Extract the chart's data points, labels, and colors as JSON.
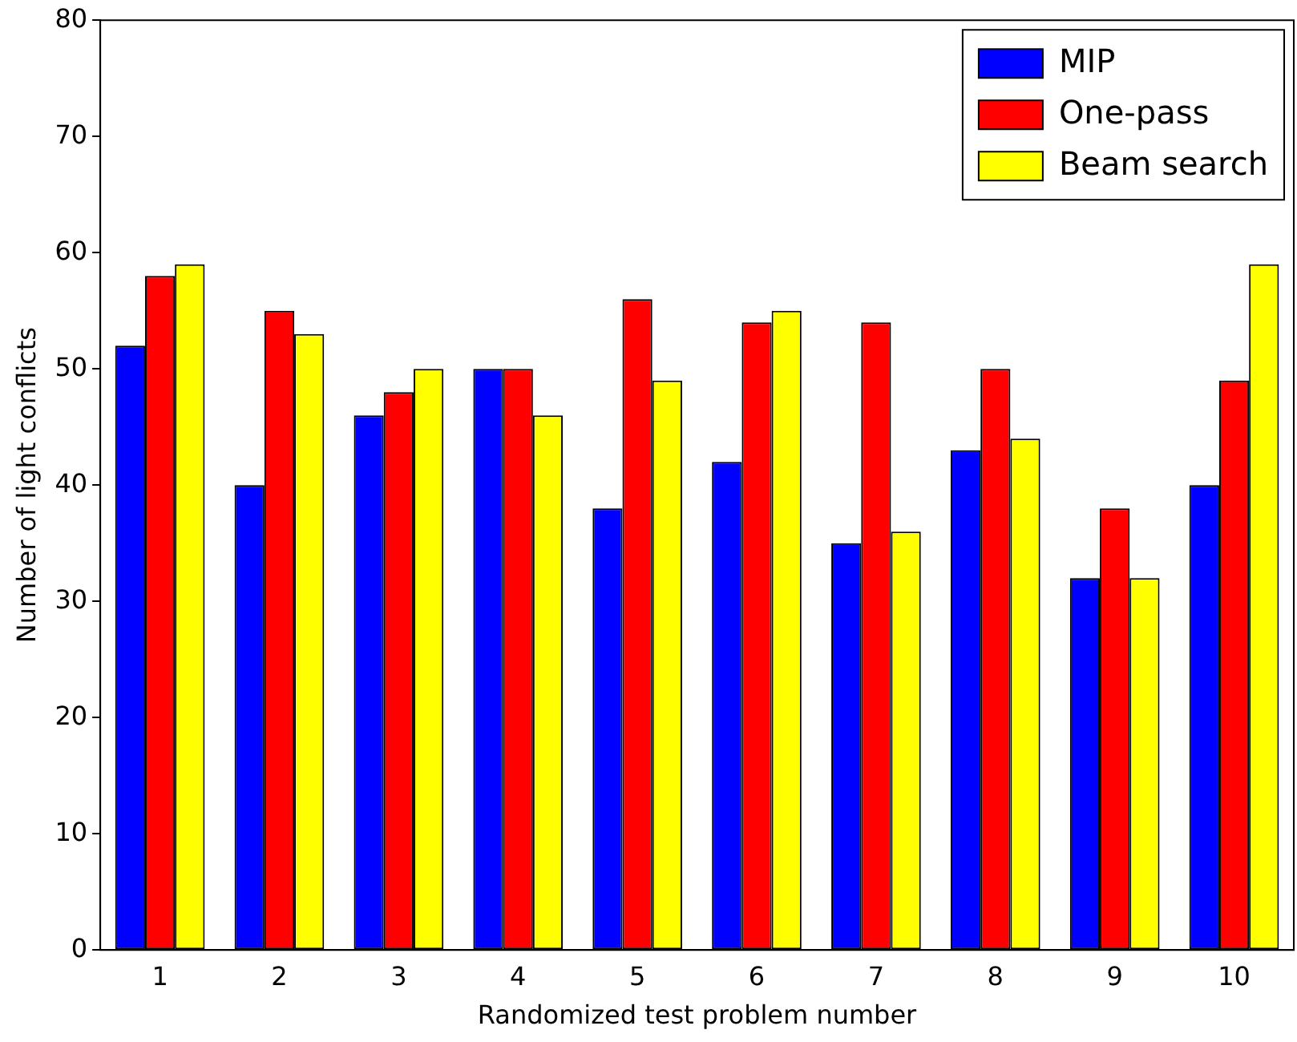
{
  "chart_data": {
    "type": "bar",
    "xlabel": "Randomized test problem number",
    "ylabel": "Number of light conflicts",
    "categories": [
      "1",
      "2",
      "3",
      "4",
      "5",
      "6",
      "7",
      "8",
      "9",
      "10"
    ],
    "series": [
      {
        "name": "MIP",
        "color": "#0000ff",
        "values": [
          52,
          40,
          46,
          50,
          38,
          42,
          35,
          43,
          32,
          40
        ]
      },
      {
        "name": "One-pass",
        "color": "#ff0000",
        "values": [
          58,
          55,
          48,
          50,
          56,
          54,
          54,
          50,
          38,
          49
        ]
      },
      {
        "name": "Beam search",
        "color": "#ffff00",
        "values": [
          59,
          53,
          50,
          46,
          49,
          55,
          36,
          44,
          32,
          59
        ]
      }
    ],
    "ylim": [
      0,
      80
    ],
    "yticks": [
      0,
      10,
      20,
      30,
      40,
      50,
      60,
      70,
      80
    ],
    "grid": false,
    "legend": "top right"
  }
}
